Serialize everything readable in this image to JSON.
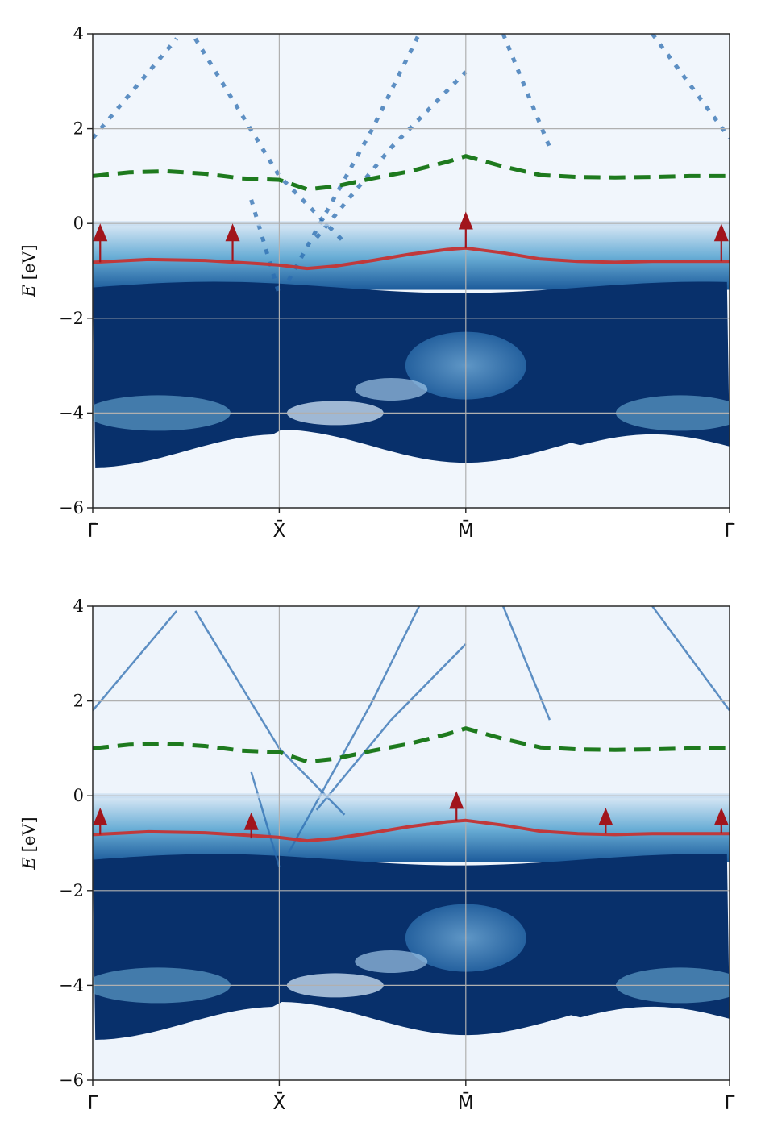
{
  "chart_data": [
    {
      "type": "heatmap",
      "panel": "top",
      "ylabel_symbol": "E",
      "ylabel_unit": "[eV]",
      "ylim": [
        -6,
        4
      ],
      "yticks": [
        {
          "value": 4,
          "label": "4"
        },
        {
          "value": 2,
          "label": "2"
        },
        {
          "value": 0,
          "label": "0"
        },
        {
          "value": -2,
          "label": "−2"
        },
        {
          "value": -4,
          "label": "−4"
        },
        {
          "value": -6,
          "label": "−6"
        }
      ],
      "xlim": [
        0,
        3.414
      ],
      "xticks": [
        {
          "value": 0,
          "label": "Γ̄"
        },
        {
          "value": 1,
          "label": "X̄"
        },
        {
          "value": 2,
          "label": "M̄"
        },
        {
          "value": 3.414,
          "label": "Γ̄"
        }
      ],
      "grid": true,
      "colormap": "Blues",
      "series": [
        {
          "style": "dashed",
          "color": "#1e7a1e",
          "x": [
            0,
            0.2,
            0.4,
            0.6,
            0.8,
            1.0,
            1.15,
            1.3,
            1.5,
            1.7,
            1.9,
            2.0,
            2.2,
            2.4,
            2.6,
            2.8,
            3.0,
            3.2,
            3.414
          ],
          "y": [
            1.0,
            1.08,
            1.1,
            1.05,
            0.95,
            0.92,
            0.72,
            0.78,
            0.95,
            1.1,
            1.3,
            1.42,
            1.2,
            1.02,
            0.98,
            0.97,
            0.98,
            1.0,
            1.0
          ]
        },
        {
          "style": "solid",
          "color": "#c0393b",
          "x": [
            0,
            0.3,
            0.6,
            0.9,
            1.0,
            1.15,
            1.3,
            1.5,
            1.7,
            1.9,
            2.0,
            2.2,
            2.4,
            2.6,
            2.8,
            3.0,
            3.2,
            3.414
          ],
          "y": [
            -0.82,
            -0.76,
            -0.78,
            -0.85,
            -0.88,
            -0.95,
            -0.9,
            -0.78,
            -0.65,
            -0.55,
            -0.52,
            -0.62,
            -0.75,
            -0.8,
            -0.82,
            -0.8,
            -0.8,
            -0.8
          ]
        }
      ],
      "arrows": [
        {
          "x": 0.04,
          "y_from": -0.82,
          "y_to": 0.0
        },
        {
          "x": 0.75,
          "y_from": -0.8,
          "y_to": 0.0
        },
        {
          "x": 2.0,
          "y_from": -0.52,
          "y_to": 0.25
        },
        {
          "x": 3.37,
          "y_from": -0.8,
          "y_to": 0.0
        }
      ]
    },
    {
      "type": "heatmap",
      "panel": "bottom",
      "ylabel_symbol": "E",
      "ylabel_unit": "[eV]",
      "ylim": [
        -6,
        4
      ],
      "yticks": [
        {
          "value": 4,
          "label": "4"
        },
        {
          "value": 2,
          "label": "2"
        },
        {
          "value": 0,
          "label": "0"
        },
        {
          "value": -2,
          "label": "−2"
        },
        {
          "value": -4,
          "label": "−4"
        },
        {
          "value": -6,
          "label": "−6"
        }
      ],
      "xlim": [
        0,
        3.414
      ],
      "xticks": [
        {
          "value": 0,
          "label": "Γ̄"
        },
        {
          "value": 1,
          "label": "X̄"
        },
        {
          "value": 2,
          "label": "M̄"
        },
        {
          "value": 3.414,
          "label": "Γ̄"
        }
      ],
      "grid": true,
      "colormap": "Blues",
      "series": [
        {
          "style": "dashed",
          "color": "#1e7a1e",
          "x": [
            0,
            0.2,
            0.4,
            0.6,
            0.8,
            1.0,
            1.15,
            1.3,
            1.5,
            1.7,
            1.9,
            2.0,
            2.2,
            2.4,
            2.6,
            2.8,
            3.0,
            3.2,
            3.414
          ],
          "y": [
            1.0,
            1.08,
            1.1,
            1.05,
            0.95,
            0.92,
            0.72,
            0.78,
            0.95,
            1.1,
            1.3,
            1.42,
            1.2,
            1.02,
            0.98,
            0.97,
            0.98,
            1.0,
            1.0
          ]
        },
        {
          "style": "solid",
          "color": "#c0393b",
          "x": [
            0,
            0.3,
            0.6,
            0.9,
            1.0,
            1.15,
            1.3,
            1.5,
            1.7,
            1.9,
            2.0,
            2.2,
            2.4,
            2.6,
            2.8,
            3.0,
            3.2,
            3.414
          ],
          "y": [
            -0.82,
            -0.76,
            -0.78,
            -0.85,
            -0.88,
            -0.95,
            -0.9,
            -0.78,
            -0.65,
            -0.55,
            -0.52,
            -0.62,
            -0.75,
            -0.8,
            -0.82,
            -0.8,
            -0.8,
            -0.8
          ]
        }
      ],
      "arrows": [
        {
          "x": 0.04,
          "y_from": -0.82,
          "y_to": -0.25
        },
        {
          "x": 0.85,
          "y_from": -0.9,
          "y_to": -0.35
        },
        {
          "x": 1.95,
          "y_from": -0.52,
          "y_to": 0.1
        },
        {
          "x": 2.75,
          "y_from": -0.8,
          "y_to": -0.25
        },
        {
          "x": 3.37,
          "y_from": -0.8,
          "y_to": -0.25
        }
      ]
    }
  ]
}
